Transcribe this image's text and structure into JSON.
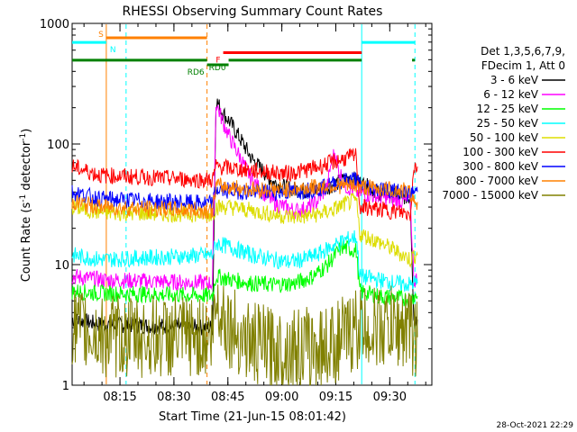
{
  "chart_data": {
    "type": "line",
    "title": "RHESSI Observing Summary Count Rates",
    "xlabel": "Start Time (21-Jun-15 08:01:42)",
    "ylabel_main": "Count Rate (s",
    "ylabel_sup": "-1",
    "ylabel_mid": " detector",
    "ylabel_end": ")",
    "yscale": "log",
    "ylim": [
      1,
      1000
    ],
    "y_ticks": [
      {
        "value": 1,
        "label": "1"
      },
      {
        "value": 10,
        "label": "10"
      },
      {
        "value": 100,
        "label": "100"
      },
      {
        "value": 1000,
        "label": "1000"
      }
    ],
    "xlim_minutes": [
      0,
      100
    ],
    "x_ticks": [
      {
        "minute": 13.3,
        "label": "08:15"
      },
      {
        "minute": 28.3,
        "label": "08:30"
      },
      {
        "minute": 43.3,
        "label": "08:45"
      },
      {
        "minute": 58.3,
        "label": "09:00"
      },
      {
        "minute": 73.3,
        "label": "09:15"
      },
      {
        "minute": 88.3,
        "label": "09:30"
      }
    ],
    "legend_header": [
      "Det 1,3,5,6,7,9,",
      "FDecim 1, Att 0"
    ],
    "series": [
      {
        "name": "3 - 6 keV",
        "color": "#000000",
        "points": [
          [
            0,
            3.5
          ],
          [
            8,
            3.2
          ],
          [
            39,
            3
          ],
          [
            40,
            230
          ],
          [
            42,
            180
          ],
          [
            44,
            150
          ],
          [
            46,
            120
          ],
          [
            48,
            95
          ],
          [
            50,
            75
          ],
          [
            53,
            60
          ],
          [
            56,
            48
          ],
          [
            59,
            44
          ],
          [
            62,
            42
          ],
          [
            65,
            41
          ],
          [
            68,
            42
          ],
          [
            71,
            44
          ],
          [
            74,
            48
          ],
          [
            77,
            52
          ],
          [
            79,
            50
          ],
          [
            81,
            46
          ],
          [
            85,
            40
          ],
          [
            89,
            38
          ],
          [
            94,
            36
          ],
          [
            95,
            3.5
          ],
          [
            96,
            3.5
          ]
        ]
      },
      {
        "name": "6 - 12 keV",
        "color": "#ff00ff",
        "points": [
          [
            0,
            8
          ],
          [
            8,
            7.5
          ],
          [
            39,
            7
          ],
          [
            40,
            220
          ],
          [
            42,
            150
          ],
          [
            44,
            110
          ],
          [
            46,
            85
          ],
          [
            48,
            65
          ],
          [
            50,
            50
          ],
          [
            53,
            40
          ],
          [
            56,
            33
          ],
          [
            59,
            30
          ],
          [
            62,
            28
          ],
          [
            65,
            29
          ],
          [
            68,
            33
          ],
          [
            71,
            45
          ],
          [
            72,
            70
          ],
          [
            73,
            85
          ],
          [
            74,
            62
          ],
          [
            76,
            45
          ],
          [
            79,
            40
          ],
          [
            82,
            38
          ],
          [
            86,
            36
          ],
          [
            90,
            34
          ],
          [
            94,
            33
          ],
          [
            95,
            7.5
          ],
          [
            96,
            7.5
          ]
        ]
      },
      {
        "name": "12 - 25 keV",
        "color": "#00ff00",
        "points": [
          [
            0,
            6
          ],
          [
            8,
            5.8
          ],
          [
            39,
            5.5
          ],
          [
            40,
            8
          ],
          [
            44,
            7.5
          ],
          [
            50,
            7
          ],
          [
            56,
            6.8
          ],
          [
            62,
            7
          ],
          [
            67,
            8
          ],
          [
            71,
            10
          ],
          [
            75,
            14
          ],
          [
            79,
            13
          ],
          [
            80,
            6
          ],
          [
            85,
            5.5
          ],
          [
            90,
            5.3
          ],
          [
            94,
            5.2
          ],
          [
            95,
            5.5
          ],
          [
            96,
            5.5
          ]
        ]
      },
      {
        "name": "25 - 50 keV",
        "color": "#00ffff",
        "points": [
          [
            0,
            12
          ],
          [
            8,
            11
          ],
          [
            39,
            12
          ],
          [
            40,
            15
          ],
          [
            44,
            14
          ],
          [
            50,
            12
          ],
          [
            56,
            11
          ],
          [
            60,
            10.5
          ],
          [
            64,
            11
          ],
          [
            68,
            12
          ],
          [
            72,
            14
          ],
          [
            76,
            16
          ],
          [
            79,
            17
          ],
          [
            80,
            8
          ],
          [
            85,
            7.5
          ],
          [
            90,
            7
          ],
          [
            94,
            6.8
          ],
          [
            95,
            7
          ],
          [
            96,
            7
          ]
        ]
      },
      {
        "name": "50 - 100 keV",
        "color": "#dddd00",
        "points": [
          [
            0,
            30
          ],
          [
            8,
            27
          ],
          [
            39,
            26
          ],
          [
            40,
            30
          ],
          [
            44,
            30
          ],
          [
            50,
            28
          ],
          [
            56,
            26
          ],
          [
            60,
            25
          ],
          [
            64,
            25
          ],
          [
            68,
            26
          ],
          [
            72,
            28
          ],
          [
            76,
            32
          ],
          [
            79,
            34
          ],
          [
            80,
            18
          ],
          [
            84,
            16
          ],
          [
            88,
            14
          ],
          [
            92,
            12
          ],
          [
            94,
            11
          ],
          [
            95,
            12
          ],
          [
            96,
            12
          ]
        ]
      },
      {
        "name": "100 - 300 keV",
        "color": "#ff0000",
        "points": [
          [
            0,
            65
          ],
          [
            8,
            55
          ],
          [
            39,
            50
          ],
          [
            40,
            65
          ],
          [
            44,
            63
          ],
          [
            50,
            60
          ],
          [
            56,
            58
          ],
          [
            60,
            57
          ],
          [
            64,
            60
          ],
          [
            68,
            64
          ],
          [
            72,
            70
          ],
          [
            76,
            76
          ],
          [
            79,
            80
          ],
          [
            80,
            30
          ],
          [
            84,
            29
          ],
          [
            88,
            28
          ],
          [
            92,
            27
          ],
          [
            94,
            26
          ],
          [
            95,
            65
          ],
          [
            96,
            65
          ]
        ]
      },
      {
        "name": "300 - 800 keV",
        "color": "#0000ff",
        "points": [
          [
            0,
            40
          ],
          [
            8,
            35
          ],
          [
            39,
            32
          ],
          [
            40,
            42
          ],
          [
            44,
            41
          ],
          [
            50,
            40
          ],
          [
            56,
            40
          ],
          [
            60,
            40
          ],
          [
            64,
            41
          ],
          [
            68,
            42
          ],
          [
            72,
            46
          ],
          [
            76,
            50
          ],
          [
            79,
            52
          ],
          [
            80,
            45
          ],
          [
            84,
            43
          ],
          [
            88,
            42
          ],
          [
            92,
            40
          ],
          [
            94,
            38
          ],
          [
            95,
            40
          ],
          [
            96,
            40
          ]
        ]
      },
      {
        "name": "800 - 7000 keV",
        "color": "#ff8000",
        "points": [
          [
            0,
            33
          ],
          [
            8,
            30
          ],
          [
            39,
            28
          ],
          [
            40,
            45
          ],
          [
            44,
            44
          ],
          [
            50,
            42
          ],
          [
            56,
            42
          ],
          [
            60,
            42
          ],
          [
            64,
            43
          ],
          [
            68,
            44
          ],
          [
            72,
            45
          ],
          [
            76,
            45
          ],
          [
            79,
            45
          ],
          [
            80,
            44
          ],
          [
            84,
            43
          ],
          [
            88,
            42
          ],
          [
            92,
            41
          ],
          [
            94,
            40
          ],
          [
            95,
            33
          ],
          [
            96,
            33
          ]
        ]
      },
      {
        "name": "7000 - 15000 keV",
        "color": "#808000",
        "points": [
          [
            0,
            3
          ],
          [
            8,
            2.5
          ],
          [
            39,
            2.5
          ],
          [
            40,
            5
          ],
          [
            44,
            3
          ],
          [
            50,
            2.2
          ],
          [
            56,
            2
          ],
          [
            60,
            2
          ],
          [
            64,
            2
          ],
          [
            68,
            2
          ],
          [
            72,
            2.2
          ],
          [
            76,
            2.5
          ],
          [
            79,
            3
          ],
          [
            80,
            3
          ],
          [
            84,
            3
          ],
          [
            88,
            3
          ],
          [
            92,
            3
          ],
          [
            94,
            3
          ],
          [
            95,
            2.5
          ],
          [
            96,
            2.5
          ]
        ]
      }
    ],
    "attenuator_bars": [
      {
        "label": "S",
        "color": "#ff8000",
        "start": 9.5,
        "end": 37.5,
        "level": 1.0,
        "label_side": "left"
      },
      {
        "label": "N",
        "color": "#00ffff",
        "start": 0,
        "end": 9.5,
        "level": 0.9,
        "label_side": "right"
      },
      {
        "label": "N",
        "color": "#00ffff",
        "start": 80.5,
        "end": 95.3,
        "level": 0.9,
        "label_side": "none"
      },
      {
        "label": "F",
        "color": "#ff0000",
        "start": 42,
        "end": 80.5,
        "level": 0.68,
        "label_side": "left"
      },
      {
        "label": "RD0",
        "color": "#008000",
        "start": 0,
        "end": 37.5,
        "level": 0.52,
        "label_side": "none"
      },
      {
        "label": "RD0",
        "color": "#008000",
        "start": 43.5,
        "end": 80.5,
        "level": 0.52,
        "label_side": "left"
      },
      {
        "label": "RD0",
        "color": "#008000",
        "start": 94.5,
        "end": 95.3,
        "level": 0.52,
        "label_side": "none"
      },
      {
        "label": "RD6",
        "color": "#008000",
        "start": 37.5,
        "end": 43.5,
        "level": 0.42,
        "label_side": "left"
      }
    ],
    "vertical_markers": [
      {
        "minute": 9.5,
        "color": "#ff8000",
        "style": "solid"
      },
      {
        "minute": 15.0,
        "color": "#00ffff",
        "style": "dashed"
      },
      {
        "minute": 37.5,
        "color": "#ff8000",
        "style": "dashed"
      },
      {
        "minute": 80.5,
        "color": "#00ffff",
        "style": "solid"
      },
      {
        "minute": 95.3,
        "color": "#00ffff",
        "style": "dashed"
      }
    ],
    "timestamp": "28-Oct-2021 22:29"
  }
}
